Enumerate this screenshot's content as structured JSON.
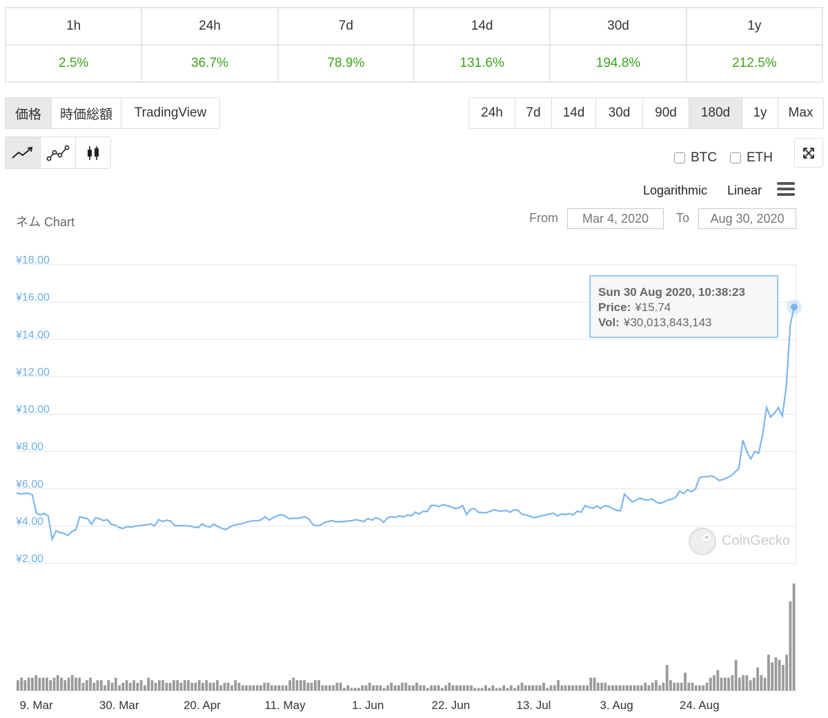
{
  "performance": {
    "periods": [
      "1h",
      "24h",
      "7d",
      "14d",
      "30d",
      "1y"
    ],
    "changes": [
      "2.5%",
      "36.7%",
      "78.9%",
      "131.6%",
      "194.8%",
      "212.5%"
    ]
  },
  "view_tabs": [
    "価格",
    "時価総額",
    "TradingView"
  ],
  "view_tabs_active": "価格",
  "range_tabs": [
    "24h",
    "7d",
    "14d",
    "30d",
    "90d",
    "180d",
    "1y",
    "Max"
  ],
  "range_tabs_active": "180d",
  "chart_style_icons": [
    "line-chart-icon",
    "ohlc-line-icon",
    "candlestick-icon"
  ],
  "compare": {
    "btc": "BTC",
    "eth": "ETH"
  },
  "scale": {
    "logarithmic": "Logarithmic",
    "linear": "Linear"
  },
  "chart_header": {
    "title": "ネム Chart",
    "from_label": "From",
    "from_value": "Mar 4, 2020",
    "to_label": "To",
    "to_value": "Aug 30, 2020"
  },
  "tooltip": {
    "date": "Sun 30 Aug 2020, 10:38:23",
    "price_label": "Price:",
    "price_value": "¥15.74",
    "vol_label": "Vol:",
    "vol_value": "¥30,013,843,143"
  },
  "watermark": "CoinGecko",
  "colors": {
    "line": "#7cb5ec",
    "axis_text": "#6aaee8",
    "positive": "#3aa51a",
    "volume": "#9a9a9a"
  },
  "chart_data": {
    "type": "line",
    "title": "ネム Chart",
    "ylim": [
      2,
      18
    ],
    "yticks": [
      "¥18.00",
      "¥16.00",
      "¥14.00",
      "¥12.00",
      "¥10.00",
      "¥8.00",
      "¥6.00",
      "¥4.00",
      "¥2.00"
    ],
    "xticks": [
      "9. Mar",
      "30. Mar",
      "20. Apr",
      "11. May",
      "1. Jun",
      "22. Jun",
      "13. Jul",
      "3. Aug",
      "24. Aug"
    ],
    "x_start": "2020-03-04",
    "x_end": "2020-08-30",
    "series": [
      {
        "values": [
          5.78,
          5.72,
          5.75,
          5.76,
          5.68,
          4.7,
          4.6,
          4.68,
          4.55,
          3.3,
          3.75,
          3.65,
          3.62,
          3.5,
          3.72,
          3.8,
          4.5,
          4.45,
          4.4,
          4.1,
          4.45,
          4.4,
          4.3,
          4.35,
          4.1,
          4.05,
          3.92,
          3.88,
          3.98,
          3.95,
          4.0,
          4.02,
          4.05,
          4.08,
          4.12,
          4.02,
          4.35,
          4.25,
          4.32,
          4.28,
          4.05,
          4.02,
          4.03,
          4.02,
          4.0,
          3.95,
          3.92,
          4.12,
          4.0,
          3.95,
          4.1,
          3.98,
          3.88,
          3.82,
          3.95,
          4.05,
          4.1,
          4.12,
          4.2,
          4.25,
          4.3,
          4.28,
          4.35,
          4.5,
          4.32,
          4.45,
          4.55,
          4.62,
          4.55,
          4.4,
          4.42,
          4.42,
          4.45,
          4.5,
          4.4,
          4.1,
          4.02,
          4.05,
          4.2,
          4.25,
          4.3,
          4.22,
          4.25,
          4.25,
          4.28,
          4.3,
          4.35,
          4.3,
          4.25,
          4.4,
          4.32,
          4.45,
          4.38,
          4.2,
          4.45,
          4.5,
          4.48,
          4.55,
          4.5,
          4.6,
          4.55,
          4.75,
          4.65,
          4.8,
          4.78,
          5.1,
          5.12,
          5.05,
          5.15,
          5.1,
          5.05,
          4.95,
          4.98,
          5.1,
          4.62,
          4.9,
          4.95,
          4.75,
          4.72,
          4.72,
          4.8,
          4.88,
          4.82,
          4.8,
          4.85,
          4.75,
          4.88,
          4.85,
          4.65,
          4.6,
          4.55,
          4.45,
          4.5,
          4.55,
          4.6,
          4.65,
          4.7,
          4.55,
          4.65,
          4.62,
          4.68,
          4.6,
          4.8,
          4.75,
          5.1,
          5.02,
          4.95,
          5.08,
          4.95,
          5.1,
          5.05,
          4.95,
          4.85,
          4.82,
          5.72,
          5.5,
          5.3,
          5.4,
          5.5,
          5.42,
          5.4,
          5.45,
          5.3,
          5.22,
          5.3,
          5.4,
          5.45,
          5.55,
          5.88,
          5.75,
          5.95,
          5.85,
          6.0,
          6.6,
          6.65,
          6.65,
          6.7,
          6.6,
          6.45,
          6.5,
          6.6,
          6.7,
          6.9,
          7.1,
          8.6,
          8.0,
          7.6,
          8.0,
          7.9,
          8.9,
          10.35,
          9.85,
          10.05,
          10.35,
          9.9,
          11.5,
          14.8,
          15.74
        ]
      }
    ],
    "volume": [
      4,
      5,
      4,
      5,
      5,
      6,
      5,
      5,
      5,
      4,
      5,
      6,
      5,
      4,
      5,
      6,
      5,
      5,
      3,
      4,
      5,
      3,
      4,
      4,
      2,
      4,
      3,
      5,
      2,
      3,
      4,
      3,
      4,
      3,
      4,
      2,
      5,
      4,
      3,
      4,
      4,
      3,
      3,
      4,
      4,
      3,
      4,
      4,
      3,
      3,
      4,
      3,
      4,
      3,
      3,
      4,
      2,
      3,
      3,
      2,
      4,
      3,
      2,
      2,
      2,
      2,
      2,
      2,
      3,
      3,
      2,
      2,
      2,
      2,
      2,
      4,
      5,
      4,
      4,
      4,
      3,
      3,
      4,
      4,
      2,
      2,
      2,
      2,
      3,
      3,
      1,
      2,
      1,
      1,
      1,
      2,
      2,
      3,
      2,
      2,
      2,
      1,
      2,
      3,
      2,
      2,
      3,
      3,
      2,
      2,
      3,
      2,
      2,
      1,
      2,
      2,
      2,
      1,
      2,
      3,
      2,
      2,
      2,
      2,
      2,
      2,
      1,
      1,
      1,
      2,
      1,
      2,
      1,
      1,
      2,
      1,
      2,
      1,
      2,
      3,
      2,
      2,
      2,
      2,
      2,
      3,
      1,
      2,
      2,
      4,
      2,
      2,
      2,
      2,
      2,
      2,
      2,
      2,
      5,
      5,
      3,
      3,
      3,
      2,
      2,
      2,
      2,
      2,
      2,
      2,
      2,
      2,
      2,
      3,
      2,
      3,
      4,
      2,
      3,
      10,
      4,
      3,
      3,
      3,
      7,
      3,
      3,
      2,
      2,
      2,
      3,
      5,
      6,
      8,
      5,
      5,
      5,
      6,
      12,
      5,
      6,
      6,
      4,
      5,
      9,
      6,
      5,
      14,
      11,
      13,
      12,
      10,
      14,
      35,
      42
    ]
  }
}
